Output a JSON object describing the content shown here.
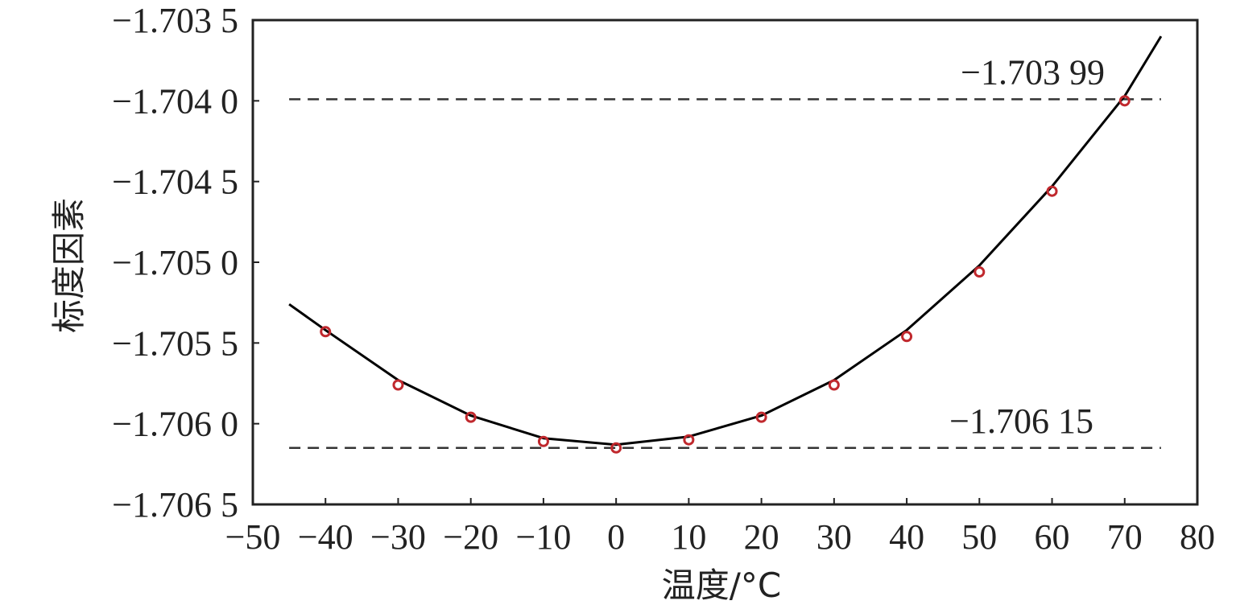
{
  "chart_data": {
    "type": "scatter",
    "xlabel": "温度/°C",
    "ylabel": "标度因素",
    "xlim": [
      -50,
      80
    ],
    "ylim": [
      -1.7065,
      -1.7035
    ],
    "x_ticks": [
      -50,
      -40,
      -30,
      -20,
      -10,
      0,
      10,
      20,
      30,
      40,
      50,
      60,
      70,
      80
    ],
    "x_tick_labels": [
      "−50",
      "−40",
      "−30",
      "−20",
      "−10",
      "0",
      "10",
      "20",
      "30",
      "40",
      "50",
      "60",
      "70",
      "80"
    ],
    "y_ticks": [
      -1.7035,
      -1.704,
      -1.7045,
      -1.705,
      -1.7055,
      -1.706,
      -1.7065
    ],
    "y_tick_labels": [
      "−1.703 5",
      "−1.704 0",
      "−1.704 5",
      "−1.705 0",
      "−1.705 5",
      "−1.706 0",
      "−1.706 5"
    ],
    "grid": false,
    "series": [
      {
        "kind": "points",
        "x": [
          -40,
          -30,
          -20,
          -10,
          0,
          10,
          20,
          30,
          40,
          50,
          60,
          70
        ],
        "y": [
          -1.70543,
          -1.70576,
          -1.70596,
          -1.70611,
          -1.70615,
          -1.7061,
          -1.70596,
          -1.70576,
          -1.70546,
          -1.70506,
          -1.70456,
          -1.704
        ],
        "color": "#c0282d"
      },
      {
        "kind": "fit-curve",
        "x": [
          -45,
          -40,
          -30,
          -20,
          -10,
          0,
          10,
          20,
          30,
          40,
          50,
          60,
          70,
          75
        ],
        "y": [
          -1.70526,
          -1.70542,
          -1.70573,
          -1.70595,
          -1.70609,
          -1.70613,
          -1.70608,
          -1.70595,
          -1.70573,
          -1.70542,
          -1.70502,
          -1.70453,
          -1.70397,
          -1.7036
        ],
        "color": "#000000"
      }
    ],
    "reference_lines": [
      {
        "y": -1.70399,
        "label": "−1.703 99"
      },
      {
        "y": -1.70615,
        "label": "−1.706 15"
      }
    ]
  }
}
